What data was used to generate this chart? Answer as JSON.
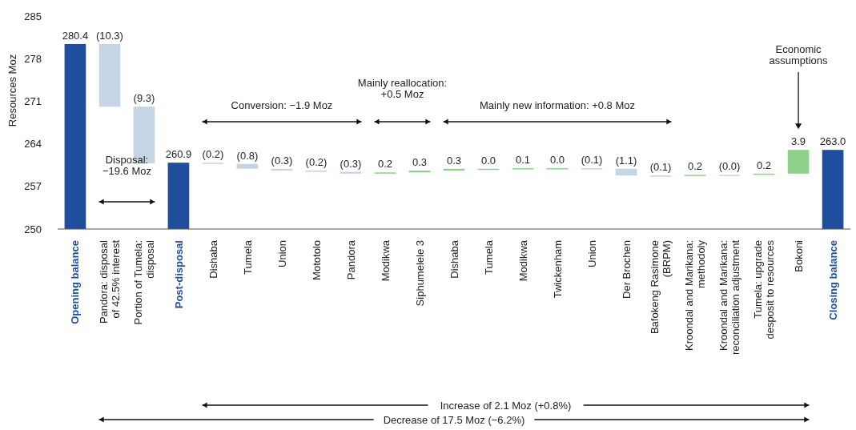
{
  "chart_data": {
    "type": "bar",
    "ylabel": "Resources Moz",
    "categories": [
      "Opening balance",
      "Pandora: disposal\nof 42.5% interest",
      "Portion of Tumela:\ndisposal",
      "Post-disposal",
      "Dishaba",
      "Tumela",
      "Union",
      "Mototolo",
      "Pandora",
      "Modikwa",
      "Siphumelele 3",
      "Dishaba",
      "Tumela",
      "Modikwa",
      "Twickenham",
      "Union",
      "Der Brochen",
      "Bafokeng Rasimone\n(BRPM)",
      "Kroondal and Marikana:\nmethodoly",
      "Kroondal and Marikana:\nreconciliation adjustment",
      "Tumela: upgrade\ndesposit to resources",
      "Bokoni",
      "Closing balance"
    ],
    "base": [
      250,
      280.4,
      270.1,
      250,
      260.9,
      260.7,
      259.9,
      259.6,
      259.4,
      259.1,
      259.3,
      259.6,
      259.9,
      259.9,
      260.0,
      260.0,
      259.9,
      258.8,
      258.7,
      258.9,
      258.9,
      259.1,
      250
    ],
    "values": [
      30.4,
      -10.3,
      -9.3,
      10.9,
      -0.2,
      -0.8,
      -0.3,
      -0.2,
      -0.3,
      0.2,
      0.3,
      0.3,
      0.0,
      0.1,
      0.0,
      -0.1,
      -1.1,
      -0.1,
      0.2,
      0.0,
      0.2,
      3.9,
      13.0
    ],
    "value_labels": [
      "280.4",
      "(10.3)",
      "(9.3)",
      "260.9",
      "(0.2)",
      "(0.8)",
      "(0.3)",
      "(0.2)",
      "(0.3)",
      "0.2",
      "0.3",
      "0.3",
      "0.0",
      "0.1",
      "0.0",
      "(0.1)",
      "(1.1)",
      "(0.1)",
      "0.2",
      "(0.0)",
      "0.2",
      "3.9",
      "263.0"
    ],
    "colors": [
      "#1f4e9c",
      "#c5d5e6",
      "#c5d5e6",
      "#1f4e9c",
      "#c5d5e6",
      "#c5d5e6",
      "#c5d5e6",
      "#c5d5e6",
      "#c5d5e6",
      "#8fd18a",
      "#8fd18a",
      "#8fd18a",
      "#8fd18a",
      "#8fd18a",
      "#8fd18a",
      "#c5d5e6",
      "#c5d5e6",
      "#c5d5e6",
      "#8fd18a",
      "#c5d5e6",
      "#8fd18a",
      "#8fd18a",
      "#1f4e9c"
    ],
    "ylim": [
      250,
      285
    ],
    "yticks": [
      250,
      257,
      264,
      271,
      278,
      285
    ],
    "grid": false,
    "annotations": [
      "Disposal:\n−19.6 Moz",
      "Conversion: −1.9 Moz",
      "Mainly reallocation:\n+0.5 Moz",
      "Mainly new information: +0.8 Moz",
      "Economic\nassumptions",
      "Increase of 2.1 Moz (+0.8%)",
      "Decrease of 17.5 Moz (−6.2%)"
    ]
  }
}
